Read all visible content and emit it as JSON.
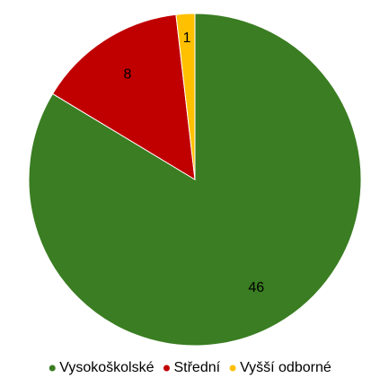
{
  "chart_data": {
    "type": "pie",
    "categories": [
      "Vysokoškolské",
      "Střední",
      "Vyšší odborné"
    ],
    "values": [
      46,
      8,
      1
    ],
    "colors": [
      "#3a7d22",
      "#c00000",
      "#ffc000"
    ],
    "legend": "bottom"
  }
}
